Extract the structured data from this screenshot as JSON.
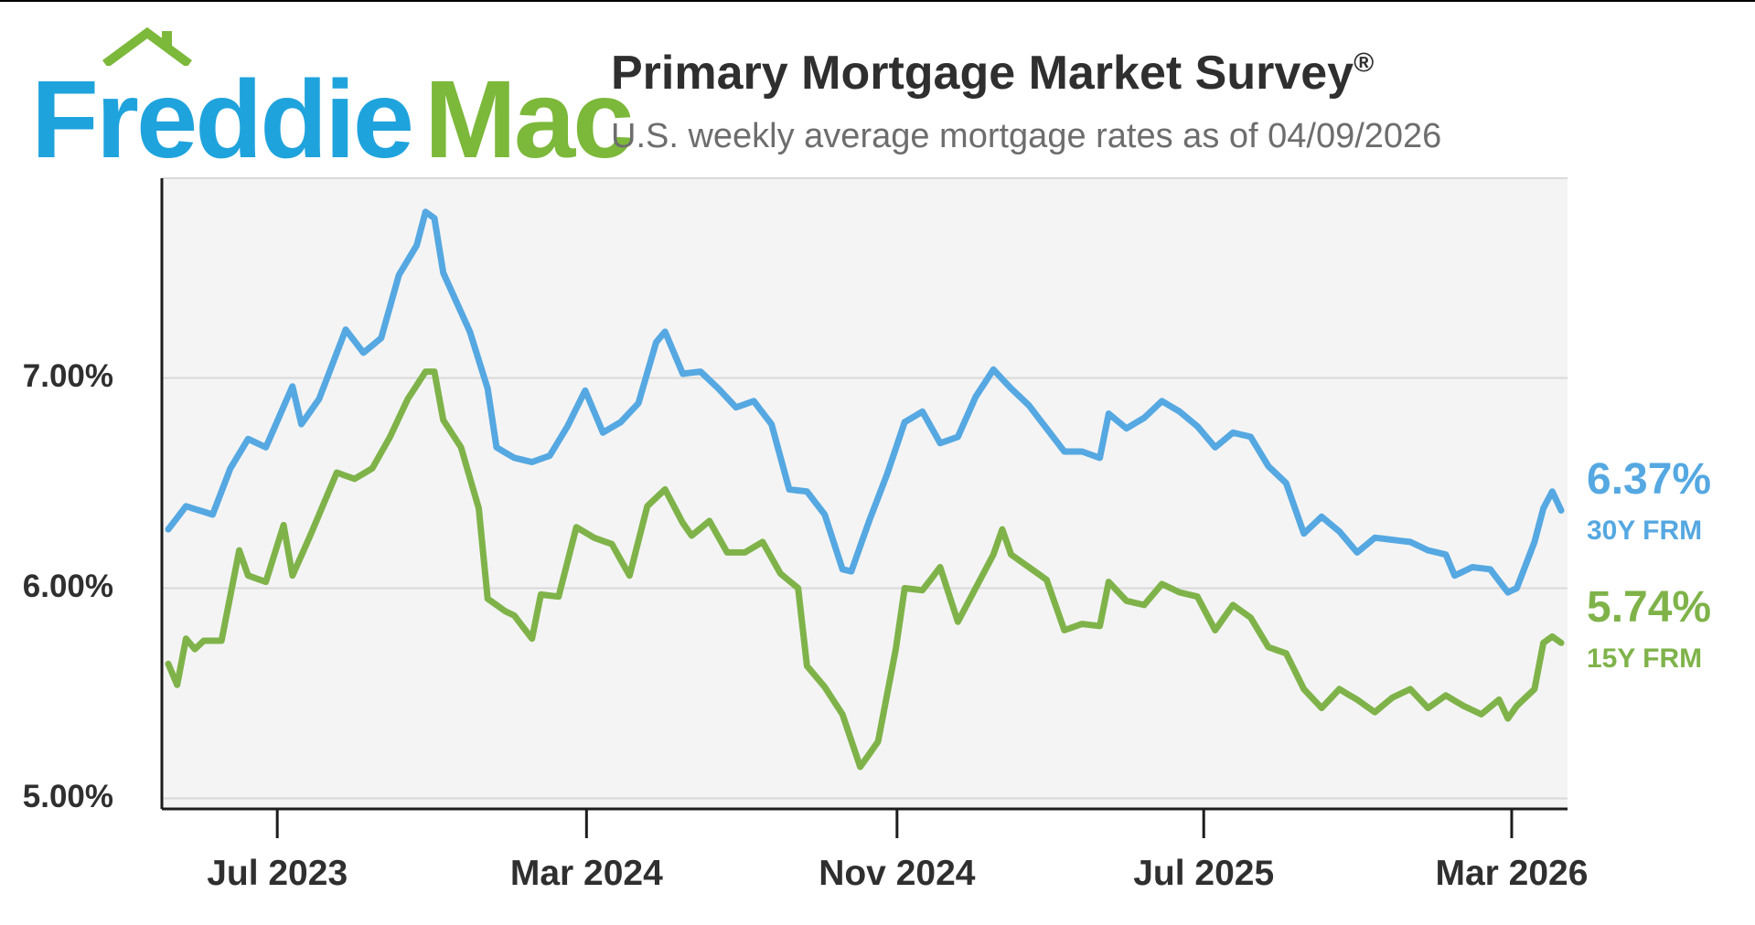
{
  "logo": {
    "part1": "Freddie",
    "part2": "Mac"
  },
  "header": {
    "title": "Primary Mortgage Market Survey",
    "title_mark": "®",
    "subtitle": "U.S. weekly average mortgage rates as of 04/09/2026"
  },
  "colors": {
    "blue": "#55a8e1",
    "green": "#7fb34a",
    "grid": "#d9d9d9",
    "axis": "#1c1c1c",
    "text": "#2f2f2f",
    "plot_bg": "#f4f4f4"
  },
  "chart_data": {
    "type": "line",
    "title": "Primary Mortgage Market Survey®",
    "subtitle": "U.S. weekly average mortgage rates as of 04/09/2026",
    "xlabel": "",
    "ylabel": "",
    "x_range": [
      "2023-04-06",
      "2026-04-09"
    ],
    "ylim": [
      4.95,
      7.95
    ],
    "ytick_values": [
      5,
      6,
      7
    ],
    "ytick_labels": [
      "5.00%",
      "6.00%",
      "7.00%"
    ],
    "xticks": [
      {
        "date": "2023-07-01",
        "label": "Jul 2023"
      },
      {
        "date": "2024-03-01",
        "label": "Mar 2024"
      },
      {
        "date": "2024-11-01",
        "label": "Nov 2024"
      },
      {
        "date": "2025-07-01",
        "label": "Jul 2025"
      },
      {
        "date": "2026-03-01",
        "label": "Mar 2026"
      }
    ],
    "series": [
      {
        "name": "30Y FRM",
        "end_label": "6.37%",
        "knots": [
          [
            "2023-04-06",
            6.28
          ],
          [
            "2023-04-20",
            6.39
          ],
          [
            "2023-05-11",
            6.35
          ],
          [
            "2023-05-25",
            6.57
          ],
          [
            "2023-06-08",
            6.71
          ],
          [
            "2023-06-22",
            6.67
          ],
          [
            "2023-07-13",
            6.96
          ],
          [
            "2023-07-20",
            6.78
          ],
          [
            "2023-08-03",
            6.9
          ],
          [
            "2023-08-24",
            7.23
          ],
          [
            "2023-09-07",
            7.12
          ],
          [
            "2023-09-21",
            7.19
          ],
          [
            "2023-10-05",
            7.49
          ],
          [
            "2023-10-19",
            7.63
          ],
          [
            "2023-10-26",
            7.79
          ],
          [
            "2023-11-02",
            7.76
          ],
          [
            "2023-11-09",
            7.5
          ],
          [
            "2023-11-30",
            7.22
          ],
          [
            "2023-12-14",
            6.95
          ],
          [
            "2023-12-21",
            6.67
          ],
          [
            "2024-01-04",
            6.62
          ],
          [
            "2024-01-18",
            6.6
          ],
          [
            "2024-02-01",
            6.63
          ],
          [
            "2024-02-15",
            6.77
          ],
          [
            "2024-02-29",
            6.94
          ],
          [
            "2024-03-14",
            6.74
          ],
          [
            "2024-03-28",
            6.79
          ],
          [
            "2024-04-11",
            6.88
          ],
          [
            "2024-04-25",
            7.17
          ],
          [
            "2024-05-02",
            7.22
          ],
          [
            "2024-05-16",
            7.02
          ],
          [
            "2024-05-30",
            7.03
          ],
          [
            "2024-06-13",
            6.95
          ],
          [
            "2024-06-27",
            6.86
          ],
          [
            "2024-07-11",
            6.89
          ],
          [
            "2024-07-25",
            6.78
          ],
          [
            "2024-08-08",
            6.47
          ],
          [
            "2024-08-22",
            6.46
          ],
          [
            "2024-09-05",
            6.35
          ],
          [
            "2024-09-19",
            6.09
          ],
          [
            "2024-09-26",
            6.08
          ],
          [
            "2024-10-10",
            6.32
          ],
          [
            "2024-10-24",
            6.54
          ],
          [
            "2024-11-07",
            6.79
          ],
          [
            "2024-11-21",
            6.84
          ],
          [
            "2024-12-05",
            6.69
          ],
          [
            "2024-12-19",
            6.72
          ],
          [
            "2025-01-02",
            6.91
          ],
          [
            "2025-01-16",
            7.04
          ],
          [
            "2025-01-30",
            6.95
          ],
          [
            "2025-02-13",
            6.87
          ],
          [
            "2025-02-27",
            6.76
          ],
          [
            "2025-03-13",
            6.65
          ],
          [
            "2025-03-27",
            6.65
          ],
          [
            "2025-04-10",
            6.62
          ],
          [
            "2025-04-17",
            6.83
          ],
          [
            "2025-05-01",
            6.76
          ],
          [
            "2025-05-15",
            6.81
          ],
          [
            "2025-05-29",
            6.89
          ],
          [
            "2025-06-12",
            6.84
          ],
          [
            "2025-06-26",
            6.77
          ],
          [
            "2025-07-10",
            6.67
          ],
          [
            "2025-07-24",
            6.74
          ],
          [
            "2025-08-07",
            6.72
          ],
          [
            "2025-08-21",
            6.58
          ],
          [
            "2025-09-04",
            6.5
          ],
          [
            "2025-09-18",
            6.26
          ],
          [
            "2025-10-02",
            6.34
          ],
          [
            "2025-10-16",
            6.27
          ],
          [
            "2025-10-30",
            6.17
          ],
          [
            "2025-11-13",
            6.24
          ],
          [
            "2025-11-27",
            6.23
          ],
          [
            "2025-12-11",
            6.22
          ],
          [
            "2025-12-25",
            6.18
          ],
          [
            "2026-01-08",
            6.16
          ],
          [
            "2026-01-15",
            6.06
          ],
          [
            "2026-01-29",
            6.1
          ],
          [
            "2026-02-12",
            6.09
          ],
          [
            "2026-02-26",
            5.98
          ],
          [
            "2026-03-05",
            6.0
          ],
          [
            "2026-03-19",
            6.22
          ],
          [
            "2026-03-26",
            6.38
          ],
          [
            "2026-04-02",
            6.46
          ],
          [
            "2026-04-09",
            6.37
          ]
        ]
      },
      {
        "name": "15Y FRM",
        "end_label": "5.74%",
        "knots": [
          [
            "2023-04-06",
            5.64
          ],
          [
            "2023-04-13",
            5.54
          ],
          [
            "2023-04-20",
            5.76
          ],
          [
            "2023-04-27",
            5.71
          ],
          [
            "2023-05-04",
            5.75
          ],
          [
            "2023-05-18",
            5.75
          ],
          [
            "2023-06-01",
            6.18
          ],
          [
            "2023-06-08",
            6.06
          ],
          [
            "2023-06-22",
            6.03
          ],
          [
            "2023-07-06",
            6.3
          ],
          [
            "2023-07-13",
            6.06
          ],
          [
            "2023-07-27",
            6.25
          ],
          [
            "2023-08-17",
            6.55
          ],
          [
            "2023-08-31",
            6.52
          ],
          [
            "2023-09-14",
            6.57
          ],
          [
            "2023-09-28",
            6.72
          ],
          [
            "2023-10-12",
            6.9
          ],
          [
            "2023-10-26",
            7.03
          ],
          [
            "2023-11-02",
            7.03
          ],
          [
            "2023-11-09",
            6.8
          ],
          [
            "2023-11-23",
            6.67
          ],
          [
            "2023-12-07",
            6.38
          ],
          [
            "2023-12-14",
            5.95
          ],
          [
            "2023-12-28",
            5.89
          ],
          [
            "2024-01-04",
            5.87
          ],
          [
            "2024-01-18",
            5.76
          ],
          [
            "2024-01-25",
            5.97
          ],
          [
            "2024-02-08",
            5.96
          ],
          [
            "2024-02-22",
            6.29
          ],
          [
            "2024-03-07",
            6.24
          ],
          [
            "2024-03-21",
            6.21
          ],
          [
            "2024-04-04",
            6.06
          ],
          [
            "2024-04-18",
            6.39
          ],
          [
            "2024-05-02",
            6.47
          ],
          [
            "2024-05-16",
            6.31
          ],
          [
            "2024-05-23",
            6.25
          ],
          [
            "2024-06-06",
            6.32
          ],
          [
            "2024-06-20",
            6.17
          ],
          [
            "2024-07-04",
            6.17
          ],
          [
            "2024-07-18",
            6.22
          ],
          [
            "2024-08-01",
            6.07
          ],
          [
            "2024-08-15",
            6.0
          ],
          [
            "2024-08-22",
            5.63
          ],
          [
            "2024-09-05",
            5.53
          ],
          [
            "2024-09-19",
            5.4
          ],
          [
            "2024-10-03",
            5.15
          ],
          [
            "2024-10-17",
            5.27
          ],
          [
            "2024-10-31",
            5.71
          ],
          [
            "2024-11-07",
            6.0
          ],
          [
            "2024-11-21",
            5.99
          ],
          [
            "2024-12-05",
            6.1
          ],
          [
            "2024-12-19",
            5.84
          ],
          [
            "2025-01-02",
            6.0
          ],
          [
            "2025-01-16",
            6.16
          ],
          [
            "2025-01-23",
            6.28
          ],
          [
            "2025-01-30",
            6.16
          ],
          [
            "2025-02-13",
            6.1
          ],
          [
            "2025-02-27",
            6.04
          ],
          [
            "2025-03-13",
            5.8
          ],
          [
            "2025-03-27",
            5.83
          ],
          [
            "2025-04-10",
            5.82
          ],
          [
            "2025-04-17",
            6.03
          ],
          [
            "2025-05-01",
            5.94
          ],
          [
            "2025-05-15",
            5.92
          ],
          [
            "2025-05-29",
            6.02
          ],
          [
            "2025-06-12",
            5.98
          ],
          [
            "2025-06-26",
            5.96
          ],
          [
            "2025-07-10",
            5.8
          ],
          [
            "2025-07-24",
            5.92
          ],
          [
            "2025-08-07",
            5.86
          ],
          [
            "2025-08-21",
            5.72
          ],
          [
            "2025-09-04",
            5.69
          ],
          [
            "2025-09-18",
            5.52
          ],
          [
            "2025-10-02",
            5.43
          ],
          [
            "2025-10-16",
            5.52
          ],
          [
            "2025-10-30",
            5.47
          ],
          [
            "2025-11-13",
            5.41
          ],
          [
            "2025-11-27",
            5.48
          ],
          [
            "2025-12-11",
            5.52
          ],
          [
            "2025-12-25",
            5.43
          ],
          [
            "2026-01-08",
            5.49
          ],
          [
            "2026-01-22",
            5.44
          ],
          [
            "2026-02-05",
            5.4
          ],
          [
            "2026-02-19",
            5.47
          ],
          [
            "2026-02-26",
            5.38
          ],
          [
            "2026-03-05",
            5.44
          ],
          [
            "2026-03-19",
            5.52
          ],
          [
            "2026-03-26",
            5.74
          ],
          [
            "2026-04-02",
            5.77
          ],
          [
            "2026-04-09",
            5.74
          ]
        ]
      }
    ]
  }
}
